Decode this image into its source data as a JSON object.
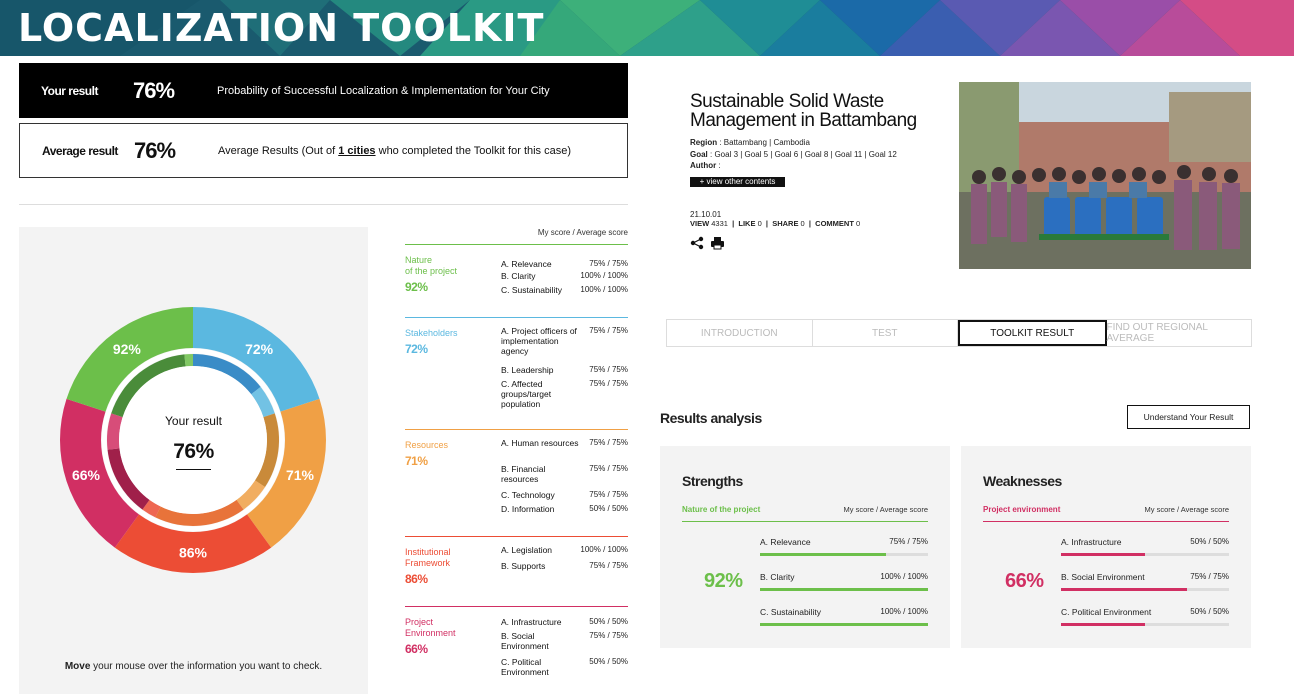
{
  "banner": {
    "title": "LOCALIZATION TOOLKIT"
  },
  "your_result": {
    "label": "Your result",
    "percent": "76%",
    "description": "Probability of Successful Localization & Implementation for Your City"
  },
  "average_result": {
    "label": "Average result",
    "percent": "76%",
    "desc_prefix": "Average Results (Out of ",
    "desc_link": "1 cities",
    "desc_suffix": " who completed the Toolkit for this case)"
  },
  "donut": {
    "center_label": "Your result",
    "center_value": "76%",
    "segments": [
      {
        "name": "Stakeholders",
        "value": 72,
        "label": "72%",
        "color": "#5bb8e0",
        "inner_color": "#3a8cc7"
      },
      {
        "name": "Resources",
        "value": 71,
        "label": "71%",
        "color": "#f0a045",
        "inner_color": "#c98a3a"
      },
      {
        "name": "Institutional Framework",
        "value": 86,
        "label": "86%",
        "color": "#ec4d35",
        "inner_color": "#e8733a"
      },
      {
        "name": "Project Environment",
        "value": 66,
        "label": "66%",
        "color": "#d12f63",
        "inner_color": "#a0204a"
      },
      {
        "name": "Nature of the project",
        "value": 92,
        "label": "92%",
        "color": "#6cbf4a",
        "inner_color": "#4a8c3a"
      }
    ],
    "hint_bold": "Move",
    "hint_rest": " your mouse over the information you want to check."
  },
  "score_header": "My score / Average score",
  "categories": [
    {
      "name": "Nature\nof the project",
      "pct": "92%",
      "color": "#6cbf4a",
      "criteria": [
        {
          "label": "A. Relevance",
          "score": "75% / 75%"
        },
        {
          "label": "B. Clarity",
          "score": "100% / 100%"
        },
        {
          "label": "C. Sustainability",
          "score": "100% / 100%"
        }
      ]
    },
    {
      "name": "Stakeholders",
      "pct": "72%",
      "color": "#5bb8e0",
      "criteria": [
        {
          "label": "A. Project officers of implementation agency",
          "score": "75% / 75%"
        },
        {
          "label": "B. Leadership",
          "score": "75% / 75%"
        },
        {
          "label": "C. Affected groups/target population",
          "score": "75% / 75%"
        }
      ]
    },
    {
      "name": "Resources",
      "pct": "71%",
      "color": "#f0a045",
      "criteria": [
        {
          "label": "A. Human resources",
          "score": "75% / 75%"
        },
        {
          "label": "B. Financial resources",
          "score": "75% / 75%"
        },
        {
          "label": "C. Technology",
          "score": "75% / 75%"
        },
        {
          "label": "D. Information",
          "score": "50% / 50%"
        }
      ]
    },
    {
      "name": "Institutional\nFramework",
      "pct": "86%",
      "color": "#ec4d35",
      "criteria": [
        {
          "label": "A. Legislation",
          "score": "100% / 100%"
        },
        {
          "label": "B. Supports",
          "score": "75% / 75%"
        }
      ]
    },
    {
      "name": "Project\nEnvironment",
      "pct": "66%",
      "color": "#d12f63",
      "criteria": [
        {
          "label": "A. Infrastructure",
          "score": "50% / 50%"
        },
        {
          "label": "B. Social Environment",
          "score": "75% / 75%"
        },
        {
          "label": "C. Political Environment",
          "score": "50% / 50%"
        }
      ]
    }
  ],
  "case": {
    "title": "Sustainable Solid Waste Management in Battambang",
    "region_label": "Region",
    "region": " : Battambang | Cambodia",
    "goal_label": "Goal",
    "goal": " : Goal 3 | Goal 5 | Goal 6 | Goal 8 | Goal 11 | Goal 12",
    "author_label": "Author",
    "author": " :",
    "view_other": "+ view other contents",
    "date": "21.10.01",
    "view_label": "VIEW",
    "view_count": "4331",
    "like_label": "LIKE",
    "like_count": "0",
    "share_label": "SHARE",
    "share_count": "0",
    "comment_label": "COMMENT",
    "comment_count": "0"
  },
  "tabs": [
    {
      "label": "INTRODUCTION"
    },
    {
      "label": "TEST"
    },
    {
      "label": "TOOLKIT RESULT"
    },
    {
      "label": "FIND OUT REGIONAL AVERAGE"
    }
  ],
  "analysis": {
    "title": "Results analysis",
    "understand_button": "Understand Your Result",
    "strengths": {
      "title": "Strengths",
      "category": "Nature of the project",
      "header": "My score / Average score",
      "big": "92%",
      "color": "#6cbf4a",
      "rows": [
        {
          "label": "A. Relevance",
          "score": "75% / 75%",
          "fill": 0.75
        },
        {
          "label": "B. Clarity",
          "score": "100% / 100%",
          "fill": 1.0
        },
        {
          "label": "C. Sustainability",
          "score": "100% / 100%",
          "fill": 1.0
        }
      ]
    },
    "weaknesses": {
      "title": "Weaknesses",
      "category": "Project environment",
      "header": "My score / Average score",
      "big": "66%",
      "color": "#d12f63",
      "rows": [
        {
          "label": "A. Infrastructure",
          "score": "50% / 50%",
          "fill": 0.5
        },
        {
          "label": "B. Social Environment",
          "score": "75% / 75%",
          "fill": 0.75
        },
        {
          "label": "C. Political Environment",
          "score": "50% / 50%",
          "fill": 0.5
        }
      ]
    }
  }
}
